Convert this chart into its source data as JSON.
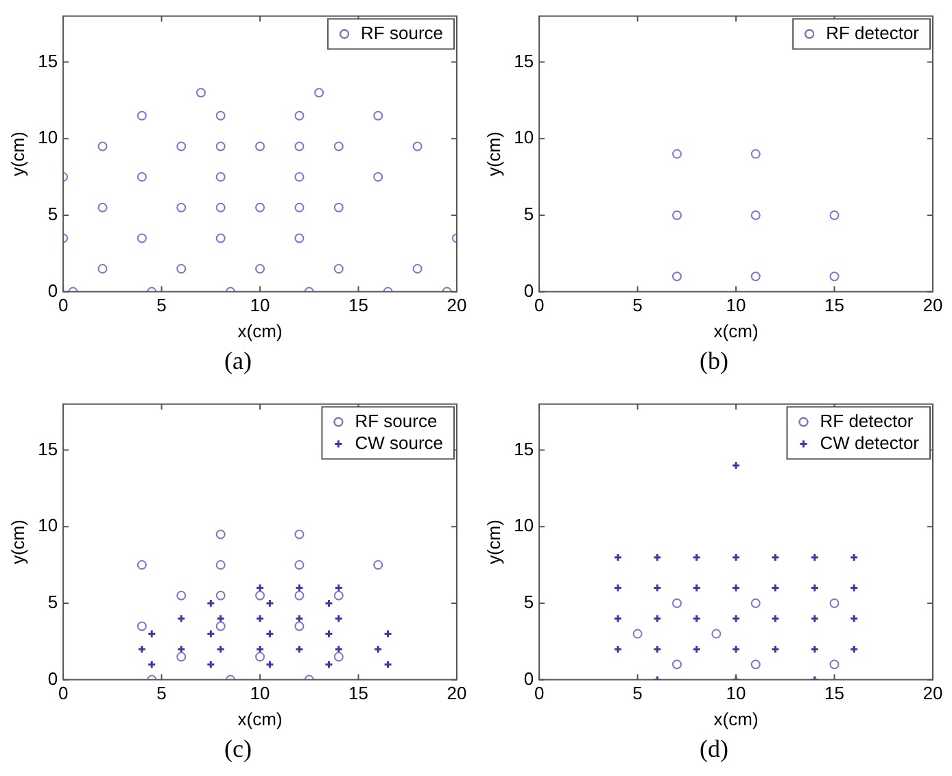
{
  "chart_data": [
    {
      "type": "scatter",
      "title": "(a)",
      "xlabel": "x(cm)",
      "ylabel": "y(cm)",
      "xlim": [
        0,
        20
      ],
      "ylim": [
        0,
        18
      ],
      "xticks": [
        0,
        5,
        10,
        15,
        20
      ],
      "yticks": [
        0,
        5,
        10,
        15
      ],
      "grid": false,
      "legend": "top right",
      "series": [
        {
          "name": "RF source",
          "color": "#7777cc",
          "marker": "circle",
          "x": [
            7,
            13,
            4,
            8,
            12,
            16,
            2,
            6,
            8,
            10,
            12,
            14,
            18,
            0,
            4,
            8,
            12,
            16,
            2,
            6,
            8,
            10,
            12,
            14,
            0,
            4,
            8,
            12,
            20,
            2,
            6,
            10,
            14,
            18,
            0.5,
            4.5,
            8.5,
            12.5,
            16.5,
            19.5
          ],
          "values": [
            13,
            13,
            11.5,
            11.5,
            11.5,
            11.5,
            9.5,
            9.5,
            9.5,
            9.5,
            9.5,
            9.5,
            9.5,
            7.5,
            7.5,
            7.5,
            7.5,
            7.5,
            5.5,
            5.5,
            5.5,
            5.5,
            5.5,
            5.5,
            3.5,
            3.5,
            3.5,
            3.5,
            3.5,
            1.5,
            1.5,
            1.5,
            1.5,
            1.5,
            0,
            0,
            0,
            0,
            0,
            0
          ]
        }
      ]
    },
    {
      "type": "scatter",
      "title": "(b)",
      "xlabel": "x(cm)",
      "ylabel": "y(cm)",
      "xlim": [
        0,
        20
      ],
      "ylim": [
        0,
        18
      ],
      "xticks": [
        0,
        5,
        10,
        15,
        20
      ],
      "yticks": [
        0,
        5,
        10,
        15
      ],
      "grid": false,
      "legend": "top right",
      "series": [
        {
          "name": "RF detector",
          "color": "#7777cc",
          "marker": "circle",
          "x": [
            7,
            11,
            7,
            11,
            15,
            7,
            11,
            15
          ],
          "values": [
            9,
            9,
            5,
            5,
            5,
            1,
            1,
            1
          ]
        }
      ]
    },
    {
      "type": "scatter",
      "title": "(c)",
      "xlabel": "x(cm)",
      "ylabel": "y(cm)",
      "xlim": [
        0,
        20
      ],
      "ylim": [
        0,
        18
      ],
      "xticks": [
        0,
        5,
        10,
        15,
        20
      ],
      "yticks": [
        0,
        5,
        10,
        15
      ],
      "grid": false,
      "legend": "top right",
      "series": [
        {
          "name": "RF source",
          "color": "#7777cc",
          "marker": "circle",
          "x": [
            8,
            12,
            4,
            8,
            12,
            16,
            6,
            8,
            10,
            12,
            14,
            4,
            8,
            12,
            6,
            10,
            14,
            4.5,
            8.5,
            12.5
          ],
          "values": [
            9.5,
            9.5,
            7.5,
            7.5,
            7.5,
            7.5,
            5.5,
            5.5,
            5.5,
            5.5,
            5.5,
            3.5,
            3.5,
            3.5,
            1.5,
            1.5,
            1.5,
            0,
            0,
            0
          ]
        },
        {
          "name": "CW source",
          "color": "#3b3b9e",
          "marker": "cross",
          "x": [
            10,
            12,
            14,
            7.5,
            10.5,
            13.5,
            6,
            8,
            10,
            12,
            14,
            4.5,
            7.5,
            10.5,
            13.5,
            16.5,
            4,
            6,
            8,
            10,
            12,
            14,
            16,
            4.5,
            7.5,
            10.5,
            13.5,
            16.5
          ],
          "values": [
            6,
            6,
            6,
            5,
            5,
            5,
            4,
            4,
            4,
            4,
            4,
            3,
            3,
            3,
            3,
            3,
            2,
            2,
            2,
            2,
            2,
            2,
            2,
            1,
            1,
            1,
            1,
            1
          ]
        }
      ]
    },
    {
      "type": "scatter",
      "title": "(d)",
      "xlabel": "x(cm)",
      "ylabel": "y(cm)",
      "xlim": [
        0,
        20
      ],
      "ylim": [
        0,
        18
      ],
      "xticks": [
        0,
        5,
        10,
        15,
        20
      ],
      "yticks": [
        0,
        5,
        10,
        15
      ],
      "grid": false,
      "legend": "top right",
      "series": [
        {
          "name": "RF detector",
          "color": "#7777cc",
          "marker": "circle",
          "x": [
            7,
            11,
            15,
            5,
            9,
            7,
            11,
            15
          ],
          "values": [
            5,
            5,
            5,
            3,
            3,
            1,
            1,
            1
          ]
        },
        {
          "name": "CW detector",
          "color": "#3b3b9e",
          "marker": "cross",
          "x": [
            4,
            6,
            8,
            10,
            12,
            14,
            16,
            4,
            6,
            8,
            10,
            12,
            14,
            16,
            4,
            6,
            8,
            10,
            12,
            14,
            16,
            4,
            6,
            8,
            10,
            12,
            14,
            16,
            10,
            6,
            10,
            14
          ],
          "values": [
            8,
            8,
            8,
            8,
            8,
            8,
            8,
            6,
            6,
            6,
            6,
            6,
            6,
            6,
            4,
            4,
            4,
            4,
            4,
            4,
            4,
            2,
            2,
            2,
            2,
            2,
            2,
            2,
            14,
            0,
            0,
            0
          ]
        }
      ]
    }
  ]
}
